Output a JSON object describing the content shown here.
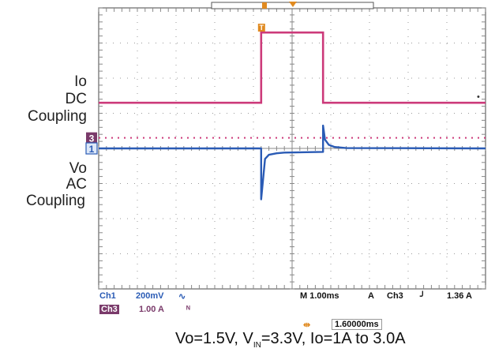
{
  "labels": {
    "io": "Io",
    "dc": "DC",
    "coupling1": "Coupling",
    "vo": "Vo",
    "ac": "AC",
    "coupling2": "Coupling"
  },
  "status": {
    "ch1_name": "Ch1",
    "ch1_scale": "200mV",
    "ch3_name": "Ch3",
    "ch3_scale": "1.00 A",
    "timebase": "M 1.00ms",
    "trigger_mode": "A",
    "trigger_src": "Ch3",
    "trigger_level": "1.36 A",
    "cursor_delta": "1.60000ms"
  },
  "markers": {
    "ch3": "3",
    "ch1": "1",
    "trigger": "T"
  },
  "caption": {
    "pre": "Vo=1.5V, V",
    "sub": "IN",
    "post": "=3.3V, Io=1A to 3.0A"
  },
  "colors": {
    "ch1": "#2a5bb5",
    "ch3": "#cc3a7a",
    "marker": "#7a3a6a",
    "grid": "#9a9a9a",
    "trigger": "#e08a20"
  },
  "chart_data": {
    "type": "line",
    "title": "",
    "xlabel": "",
    "ylabel": "",
    "x_unit": "ms",
    "xlim": [
      -5,
      5
    ],
    "ylim": [
      -4,
      4
    ],
    "grid": true,
    "series": [
      {
        "name": "Io",
        "x": [
          -5.0,
          -0.8,
          -0.8,
          0.8,
          0.8,
          5.0
        ],
        "y": [
          1.0,
          1.0,
          3.0,
          3.0,
          1.0,
          1.0
        ]
      },
      {
        "name": "Vo",
        "x": [
          -5.0,
          -0.8,
          -0.8,
          -0.7,
          -0.6,
          -0.4,
          -0.2,
          0.8,
          0.8,
          0.85,
          0.95,
          1.1,
          1.4,
          5.0
        ],
        "y": [
          0.0,
          0.0,
          -1.45,
          -0.3,
          -0.18,
          -0.14,
          -0.12,
          -0.1,
          0.65,
          0.25,
          0.1,
          0.04,
          0.01,
          0.0
        ]
      }
    ]
  }
}
